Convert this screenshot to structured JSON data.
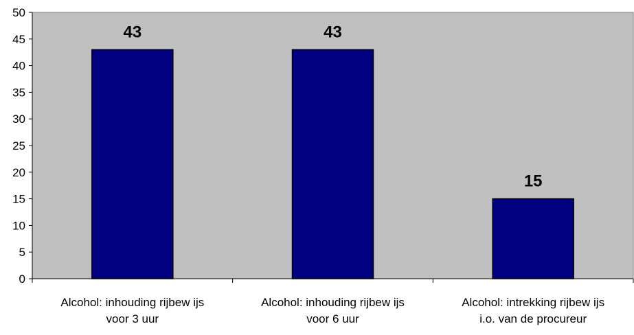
{
  "chart_data": {
    "type": "bar",
    "title": "",
    "xlabel": "",
    "ylabel": "",
    "categories": [
      [
        "Alcohol: inhouding rijbew ijs",
        "voor 3 uur"
      ],
      [
        "Alcohol: inhouding rijbew ijs",
        "voor 6 uur"
      ],
      [
        "Alcohol: intrekking rijbew ijs",
        "i.o. van de procureur"
      ]
    ],
    "values": [
      43,
      43,
      15
    ],
    "data_labels": [
      "43",
      "43",
      "15"
    ],
    "ylim": [
      0,
      50
    ],
    "yticks": [
      "0",
      "5",
      "10",
      "15",
      "20",
      "25",
      "30",
      "35",
      "40",
      "45",
      "50"
    ],
    "grid": false,
    "legend": "none",
    "colors": {
      "plot_background": "#c0c0c0",
      "bar_fill": "#000080",
      "bar_stroke": "#000000",
      "axis": "#000000"
    }
  }
}
